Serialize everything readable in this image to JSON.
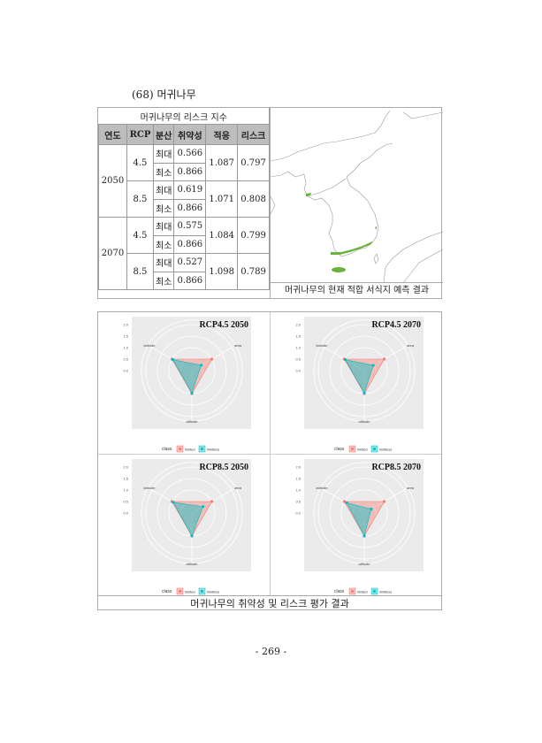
{
  "heading": "(68)  머귀나무",
  "risk_table": {
    "title": "머귀나무의 리스크 지수",
    "columns": [
      "연도",
      "RCP",
      "분산",
      "취약성",
      "적응",
      "리스크"
    ],
    "groups": [
      {
        "year": "2050",
        "rcps": [
          {
            "rcp": "4.5",
            "rows": [
              {
                "dispersal": "최대",
                "vulnerability": "0.566"
              },
              {
                "dispersal": "최소",
                "vulnerability": "0.866"
              }
            ],
            "adaptation": "1.087",
            "risk": "0.797"
          },
          {
            "rcp": "8.5",
            "rows": [
              {
                "dispersal": "최대",
                "vulnerability": "0.619"
              },
              {
                "dispersal": "최소",
                "vulnerability": "0.866"
              }
            ],
            "adaptation": "1.071",
            "risk": "0.808"
          }
        ]
      },
      {
        "year": "2070",
        "rcps": [
          {
            "rcp": "4.5",
            "rows": [
              {
                "dispersal": "최대",
                "vulnerability": "0.575"
              },
              {
                "dispersal": "최소",
                "vulnerability": "0.866"
              }
            ],
            "adaptation": "1.084",
            "risk": "0.799"
          },
          {
            "rcp": "8.5",
            "rows": [
              {
                "dispersal": "최대",
                "vulnerability": "0.527"
              },
              {
                "dispersal": "최소",
                "vulnerability": "0.866"
              }
            ],
            "adaptation": "1.098",
            "risk": "0.789"
          }
        ]
      }
    ]
  },
  "map": {
    "caption": "머귀나무의 현재 적합 서식지 예측 결과",
    "habitat_color": "#6ab33c",
    "outline_color": "#9a9a9a"
  },
  "grid_caption": "머귀나무의 취약성 및 리스크 평가 결과",
  "page_number": "- 269 -",
  "chart_data": [
    {
      "type": "radar",
      "title": "RCP4.5  2050",
      "axes": [
        "latitude",
        "area",
        "altitude"
      ],
      "radial_ticks": [
        "2.0",
        "1.5",
        "1.0",
        "0.5",
        "0.0"
      ],
      "legend_title": "class",
      "legend_position": "bottom",
      "series": [
        {
          "name": "limited",
          "color": "#f8766d",
          "values": [
            1.0,
            1.0,
            1.0
          ]
        },
        {
          "name": "limitless",
          "color": "#00bfc4",
          "values": [
            0.95,
            0.47,
            0.97
          ]
        }
      ]
    },
    {
      "type": "radar",
      "title": "RCP4.5  2070",
      "axes": [
        "latitude",
        "area",
        "altitude"
      ],
      "radial_ticks": [
        "2.0",
        "1.5",
        "1.0",
        "0.5",
        "0.0"
      ],
      "legend_title": "class",
      "legend_position": "bottom",
      "series": [
        {
          "name": "limited",
          "color": "#f8766d",
          "values": [
            1.0,
            1.0,
            1.0
          ]
        },
        {
          "name": "limitless",
          "color": "#00bfc4",
          "values": [
            0.95,
            0.45,
            0.97
          ]
        }
      ]
    },
    {
      "type": "radar",
      "title": "RCP8.5  2050",
      "axes": [
        "latitude",
        "area",
        "altitude"
      ],
      "radial_ticks": [
        "2.0",
        "1.5",
        "1.0",
        "0.5",
        "0.0"
      ],
      "legend_title": "class",
      "legend_position": "bottom",
      "series": [
        {
          "name": "limited",
          "color": "#f8766d",
          "values": [
            1.0,
            1.0,
            1.0
          ]
        },
        {
          "name": "limitless",
          "color": "#00bfc4",
          "values": [
            0.93,
            0.56,
            0.99
          ]
        }
      ]
    },
    {
      "type": "radar",
      "title": "RCP8.5  2070",
      "axes": [
        "latitude",
        "area",
        "altitude"
      ],
      "radial_ticks": [
        "2.0",
        "1.5",
        "1.0",
        "0.5",
        "0.0"
      ],
      "legend_title": "class",
      "legend_position": "bottom",
      "series": [
        {
          "name": "limited",
          "color": "#f8766d",
          "values": [
            1.0,
            1.0,
            1.0
          ]
        },
        {
          "name": "limitless",
          "color": "#00bfc4",
          "values": [
            0.88,
            0.35,
            0.99
          ]
        }
      ]
    }
  ]
}
